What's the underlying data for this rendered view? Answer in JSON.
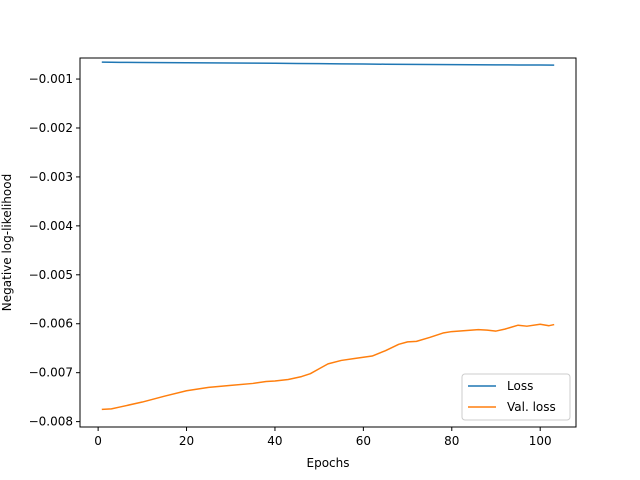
{
  "chart_data": {
    "type": "line",
    "title": "",
    "xlabel": "Epochs",
    "ylabel": "Negative log-likelihood",
    "xlim": [
      -4.1,
      108.1
    ],
    "ylim": [
      -0.00811,
      -0.00057
    ],
    "xticks": [
      0,
      20,
      40,
      60,
      80,
      100
    ],
    "yticks": [
      -0.008,
      -0.007,
      -0.006,
      -0.005,
      -0.004,
      -0.003,
      -0.002,
      -0.001
    ],
    "xtick_labels": [
      "0",
      "20",
      "40",
      "60",
      "80",
      "100"
    ],
    "ytick_labels": [
      "−0.008",
      "−0.007",
      "−0.006",
      "−0.005",
      "−0.004",
      "−0.003",
      "−0.002",
      "−0.001"
    ],
    "grid": false,
    "legend_position": "lower-right",
    "series": [
      {
        "name": "Loss",
        "color": "#1f77b4",
        "x": [
          1,
          5,
          10,
          15,
          20,
          25,
          30,
          35,
          40,
          45,
          50,
          55,
          60,
          65,
          70,
          75,
          80,
          85,
          90,
          95,
          100,
          103
        ],
        "y": [
          -0.000655,
          -0.00066,
          -0.000662,
          -0.000665,
          -0.000667,
          -0.00067,
          -0.000672,
          -0.000675,
          -0.000678,
          -0.000682,
          -0.000685,
          -0.00069,
          -0.000693,
          -0.000697,
          -0.0007,
          -0.000703,
          -0.000706,
          -0.000708,
          -0.00071,
          -0.000712,
          -0.000713,
          -0.000715
        ]
      },
      {
        "name": "Val. loss",
        "color": "#ff7f0e",
        "x": [
          1,
          3,
          5,
          10,
          15,
          20,
          25,
          30,
          35,
          38,
          40,
          43,
          46,
          48,
          50,
          52,
          55,
          58,
          62,
          65,
          68,
          70,
          72,
          75,
          78,
          80,
          83,
          86,
          88,
          90,
          92,
          95,
          97,
          100,
          102,
          103
        ],
        "y": [
          -0.00775,
          -0.00774,
          -0.0077,
          -0.0076,
          -0.00748,
          -0.00737,
          -0.0073,
          -0.00726,
          -0.00722,
          -0.00718,
          -0.00717,
          -0.00714,
          -0.00708,
          -0.00702,
          -0.00692,
          -0.00682,
          -0.00675,
          -0.00671,
          -0.00666,
          -0.00655,
          -0.00642,
          -0.00637,
          -0.00636,
          -0.00628,
          -0.00619,
          -0.00616,
          -0.00614,
          -0.00612,
          -0.00613,
          -0.00615,
          -0.00611,
          -0.00603,
          -0.00605,
          -0.00601,
          -0.00604,
          -0.00602
        ]
      }
    ]
  }
}
